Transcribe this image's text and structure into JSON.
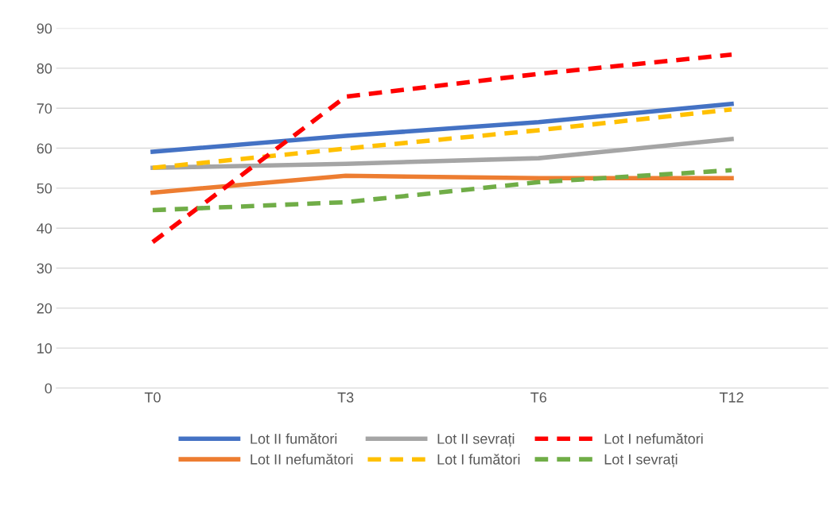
{
  "chart_data": {
    "type": "line",
    "categories": [
      "T0",
      "T3",
      "T6",
      "T12"
    ],
    "ylim": [
      0,
      90
    ],
    "yticks": [
      0,
      10,
      20,
      30,
      40,
      50,
      60,
      70,
      80,
      90
    ],
    "grid": "y",
    "legend": "bottom",
    "marker": "none",
    "series": [
      {
        "name": "Lot II fumători",
        "color": "#4472c4",
        "line_style": "solid",
        "values": [
          59.1,
          63.1,
          66.5,
          71.1
        ]
      },
      {
        "name": "Lot II nefumători",
        "color": "#ed7d31",
        "line_style": "solid",
        "values": [
          48.9,
          53.1,
          52.5,
          52.5
        ]
      },
      {
        "name": "Lot II sevrați",
        "color": "#a5a5a5",
        "line_style": "solid",
        "values": [
          55.1,
          56.1,
          57.5,
          62.3
        ]
      },
      {
        "name": "Lot I fumători",
        "color": "#ffc000",
        "line_style": "dashed",
        "values": [
          55.1,
          59.9,
          64.5,
          69.7
        ]
      },
      {
        "name": "Lot I nefumători",
        "color": "#ff0000",
        "line_style": "dashed",
        "values": [
          36.5,
          72.9,
          78.6,
          83.4
        ]
      },
      {
        "name": "Lot I sevrați",
        "color": "#70ad47",
        "line_style": "dashed",
        "values": [
          44.5,
          46.5,
          51.5,
          54.5
        ]
      }
    ]
  }
}
